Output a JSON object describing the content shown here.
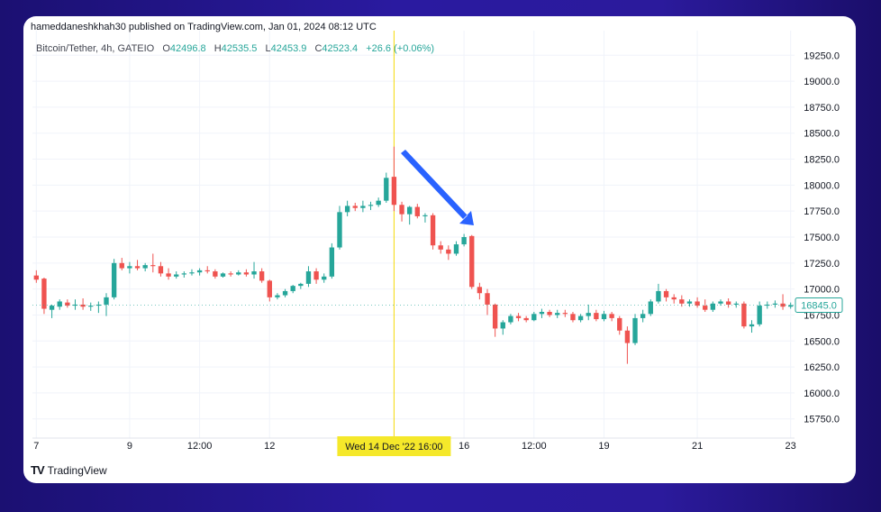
{
  "header": {
    "published": "hameddaneshkhah30 published on TradingView.com, Jan 01, 2024 08:12 UTC"
  },
  "legend": {
    "symbol": "Bitcoin/Tether, 4h, GATEIO",
    "o_label": "O",
    "o_value": "42496.8",
    "h_label": "H",
    "h_value": "42535.5",
    "l_label": "L",
    "l_value": "42453.9",
    "c_label": "C",
    "c_value": "42523.4",
    "change": "+26.6 (+0.06%)"
  },
  "logo": {
    "mark": "TV",
    "text": "TradingView"
  },
  "colors": {
    "up": "#26a69a",
    "down": "#ef5350",
    "grid": "#f0f3fa",
    "crosshair": "#f5d90a",
    "crosshair_label_bg": "#f5e82a",
    "arrow": "#2962ff",
    "price_label_border": "#26a69a"
  },
  "chart_data": {
    "type": "candlestick",
    "ylim": [
      15600,
      19400
    ],
    "y_ticks": [
      "19250.0",
      "19000.0",
      "18750.0",
      "18500.0",
      "18250.0",
      "18000.0",
      "17750.0",
      "17500.0",
      "17250.0",
      "17000.0",
      "16750.0",
      "16500.0",
      "16250.0",
      "16000.0",
      "15750.0"
    ],
    "x_ticks": [
      {
        "label": "7",
        "index": 0
      },
      {
        "label": "9",
        "index": 12
      },
      {
        "label": "12:00",
        "index": 21
      },
      {
        "label": "12",
        "index": 30
      },
      {
        "label": "16",
        "index": 55
      },
      {
        "label": "12:00",
        "index": 64
      },
      {
        "label": "19",
        "index": 73
      },
      {
        "label": "21",
        "index": 85
      },
      {
        "label": "23",
        "index": 97
      }
    ],
    "crosshair": {
      "index": 46,
      "label": "Wed 14 Dec '22   16:00"
    },
    "last_price": "16845.0",
    "candles": [
      [
        17130,
        17180,
        17060,
        17090
      ],
      [
        17100,
        17110,
        16760,
        16810
      ],
      [
        16800,
        16850,
        16720,
        16840
      ],
      [
        16830,
        16900,
        16800,
        16880
      ],
      [
        16870,
        16900,
        16820,
        16840
      ],
      [
        16840,
        16900,
        16800,
        16850
      ],
      [
        16850,
        16910,
        16800,
        16830
      ],
      [
        16830,
        16870,
        16790,
        16840
      ],
      [
        16840,
        16880,
        16770,
        16850
      ],
      [
        16850,
        16960,
        16740,
        16920
      ],
      [
        16920,
        17290,
        16900,
        17250
      ],
      [
        17250,
        17300,
        17180,
        17200
      ],
      [
        17200,
        17260,
        17150,
        17220
      ],
      [
        17220,
        17280,
        17180,
        17200
      ],
      [
        17200,
        17250,
        17170,
        17230
      ],
      [
        17230,
        17340,
        17160,
        17220
      ],
      [
        17220,
        17260,
        17120,
        17150
      ],
      [
        17150,
        17200,
        17090,
        17120
      ],
      [
        17120,
        17170,
        17100,
        17140
      ],
      [
        17140,
        17170,
        17110,
        17150
      ],
      [
        17150,
        17190,
        17130,
        17160
      ],
      [
        17160,
        17200,
        17130,
        17180
      ],
      [
        17180,
        17220,
        17150,
        17170
      ],
      [
        17170,
        17190,
        17100,
        17120
      ],
      [
        17120,
        17160,
        17110,
        17150
      ],
      [
        17150,
        17170,
        17120,
        17140
      ],
      [
        17140,
        17180,
        17130,
        17160
      ],
      [
        17160,
        17190,
        17120,
        17140
      ],
      [
        17140,
        17260,
        17100,
        17170
      ],
      [
        17170,
        17200,
        17060,
        17080
      ],
      [
        17080,
        17090,
        16880,
        16920
      ],
      [
        16920,
        16960,
        16900,
        16940
      ],
      [
        16940,
        17000,
        16920,
        16980
      ],
      [
        16980,
        17040,
        16960,
        17030
      ],
      [
        17030,
        17060,
        17000,
        17050
      ],
      [
        17050,
        17220,
        17020,
        17170
      ],
      [
        17170,
        17200,
        17050,
        17090
      ],
      [
        17090,
        17150,
        17060,
        17120
      ],
      [
        17120,
        17440,
        17100,
        17400
      ],
      [
        17400,
        17800,
        17380,
        17740
      ],
      [
        17740,
        17850,
        17700,
        17800
      ],
      [
        17800,
        17830,
        17750,
        17780
      ],
      [
        17780,
        17850,
        17740,
        17800
      ],
      [
        17800,
        17840,
        17760,
        17810
      ],
      [
        17810,
        17880,
        17790,
        17850
      ],
      [
        17850,
        18120,
        17830,
        18070
      ],
      [
        18080,
        18370,
        17750,
        17810
      ],
      [
        17810,
        17840,
        17650,
        17720
      ],
      [
        17720,
        17800,
        17620,
        17790
      ],
      [
        17790,
        17820,
        17680,
        17700
      ],
      [
        17700,
        17730,
        17640,
        17710
      ],
      [
        17710,
        17730,
        17380,
        17420
      ],
      [
        17420,
        17460,
        17340,
        17380
      ],
      [
        17380,
        17420,
        17280,
        17340
      ],
      [
        17340,
        17460,
        17320,
        17430
      ],
      [
        17430,
        17530,
        17410,
        17500
      ],
      [
        17510,
        17520,
        17000,
        17020
      ],
      [
        17020,
        17060,
        16900,
        16960
      ],
      [
        16960,
        17000,
        16750,
        16850
      ],
      [
        16850,
        16860,
        16540,
        16620
      ],
      [
        16620,
        16700,
        16560,
        16680
      ],
      [
        16680,
        16760,
        16660,
        16740
      ],
      [
        16740,
        16770,
        16690,
        16720
      ],
      [
        16720,
        16740,
        16680,
        16700
      ],
      [
        16700,
        16780,
        16690,
        16760
      ],
      [
        16760,
        16810,
        16720,
        16780
      ],
      [
        16780,
        16800,
        16730,
        16750
      ],
      [
        16750,
        16800,
        16720,
        16770
      ],
      [
        16770,
        16800,
        16730,
        16760
      ],
      [
        16760,
        16780,
        16680,
        16700
      ],
      [
        16700,
        16760,
        16680,
        16740
      ],
      [
        16740,
        16850,
        16700,
        16770
      ],
      [
        16770,
        16800,
        16690,
        16710
      ],
      [
        16710,
        16790,
        16690,
        16760
      ],
      [
        16760,
        16780,
        16690,
        16720
      ],
      [
        16720,
        16740,
        16560,
        16600
      ],
      [
        16600,
        16640,
        16280,
        16480
      ],
      [
        16480,
        16760,
        16460,
        16720
      ],
      [
        16720,
        16800,
        16680,
        16760
      ],
      [
        16760,
        16900,
        16740,
        16880
      ],
      [
        16880,
        17050,
        16860,
        16980
      ],
      [
        16980,
        17000,
        16880,
        16920
      ],
      [
        16920,
        16950,
        16860,
        16900
      ],
      [
        16900,
        16940,
        16830,
        16860
      ],
      [
        16860,
        16900,
        16830,
        16880
      ],
      [
        16880,
        16920,
        16820,
        16840
      ],
      [
        16840,
        16900,
        16780,
        16800
      ],
      [
        16800,
        16880,
        16780,
        16860
      ],
      [
        16860,
        16900,
        16840,
        16880
      ],
      [
        16880,
        16910,
        16820,
        16850
      ],
      [
        16850,
        16880,
        16820,
        16860
      ],
      [
        16860,
        16880,
        16620,
        16640
      ],
      [
        16640,
        16700,
        16580,
        16660
      ],
      [
        16660,
        16880,
        16640,
        16840
      ],
      [
        16840,
        16880,
        16810,
        16850
      ],
      [
        16850,
        16890,
        16820,
        16860
      ],
      [
        16860,
        16950,
        16800,
        16830
      ],
      [
        16830,
        16870,
        16810,
        16845
      ]
    ]
  }
}
